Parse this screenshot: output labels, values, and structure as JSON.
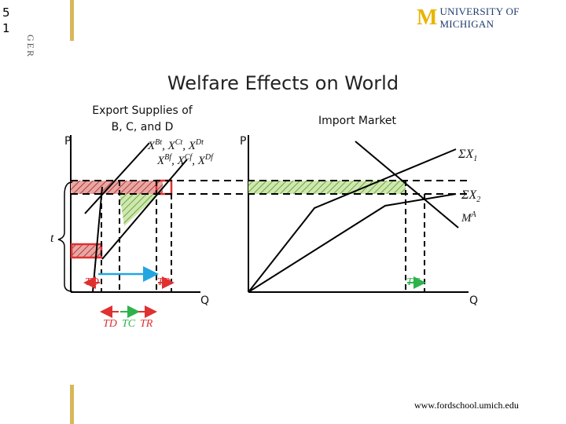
{
  "slide_number": [
    "5",
    "1"
  ],
  "side_tag": "GER",
  "logo": {
    "mark": "M",
    "text": "UNIVERSITY OF MICHIGAN",
    "color": "#e9b400"
  },
  "title": "Welfare Effects on World",
  "left_panel": {
    "heading_line1": "Export Supplies of",
    "heading_line2": "B, C, and D",
    "p_axis": "P",
    "q_axis": "Q",
    "curve_labels": {
      "row1": [
        "X",
        "Bt",
        ", X",
        "Ct",
        ", X",
        "Dt"
      ],
      "row2": [
        "X",
        "Bf",
        ", X",
        "Cf",
        ", X",
        "Df"
      ]
    },
    "tariff_label": "t",
    "arrow_labels": {
      "td": "TD",
      "tr": "TR",
      "td2": "TD",
      "tc": "TC",
      "tr2": "TR"
    }
  },
  "right_panel": {
    "heading": "Import Market",
    "p_axis": "P",
    "q_axis": "Q",
    "sum_x1": [
      "ΣX",
      "1"
    ],
    "sum_x2": [
      "ΣX",
      "2"
    ],
    "ma": [
      "M",
      "A"
    ],
    "tc_label": "TC"
  },
  "colors": {
    "red_hatch": "#c0504d",
    "green_hatch": "#8fc45a",
    "blue_arrow": "#21a6e0",
    "red_arrow": "#e03030",
    "green_arrow": "#2db34a"
  },
  "footer_url": "www.fordschool.umich.edu"
}
